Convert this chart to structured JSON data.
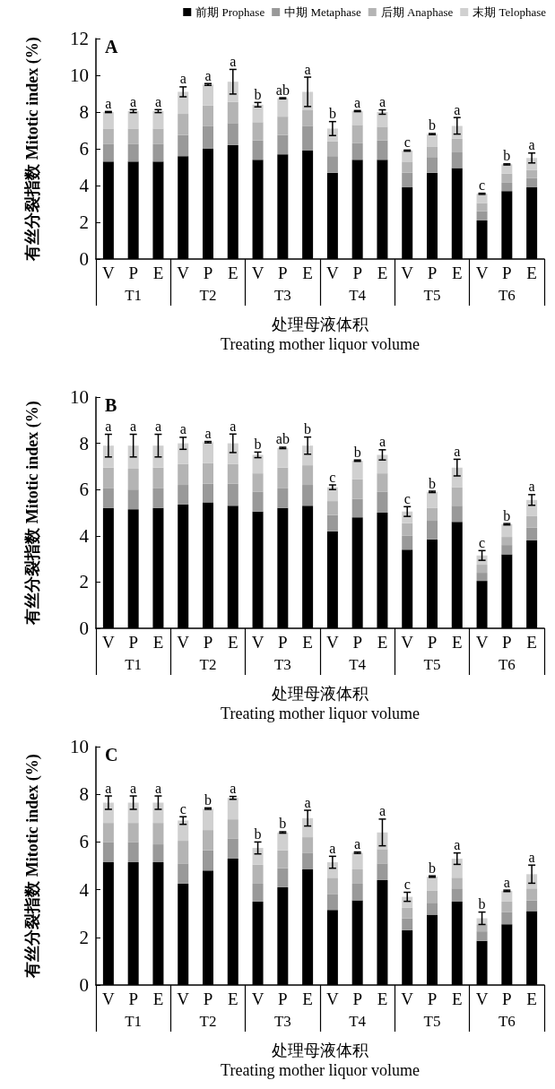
{
  "chart_data": [
    {
      "type": "bar",
      "title": "A",
      "stacked": true,
      "legend": "top",
      "ylabel": "有丝分裂指数 Mitotic index (%)",
      "xlabel": "处理母液体积\nTreating mother liquor volume",
      "ylim": [
        0,
        12
      ],
      "yticks": [
        0,
        2,
        4,
        6,
        8,
        10,
        12
      ],
      "categories": [
        "V",
        "P",
        "E",
        "V",
        "P",
        "E",
        "V",
        "P",
        "E",
        "V",
        "P",
        "E",
        "V",
        "P",
        "E",
        "V",
        "P",
        "E"
      ],
      "series": [
        {
          "name": "前期 Prophase",
          "color": "#000000",
          "values": [
            5.3,
            5.3,
            5.3,
            5.6,
            6.0,
            6.2,
            5.4,
            5.7,
            5.9,
            4.7,
            5.4,
            5.4,
            3.9,
            4.7,
            4.95,
            2.1,
            3.7,
            3.9
          ]
        },
        {
          "name": "中期 Metaphase",
          "color": "#999999",
          "values": [
            0.95,
            0.95,
            0.95,
            1.15,
            1.25,
            1.2,
            1.05,
            1.05,
            1.35,
            0.9,
            0.9,
            1.05,
            0.8,
            0.85,
            0.85,
            0.5,
            0.45,
            0.5
          ]
        },
        {
          "name": "后期 Anaphase",
          "color": "#b4b4b4",
          "values": [
            0.85,
            0.85,
            0.85,
            1.15,
            1.1,
            1.15,
            1.0,
            1.0,
            0.85,
            0.8,
            1.0,
            0.75,
            0.6,
            0.55,
            0.75,
            0.45,
            0.5,
            0.45
          ]
        },
        {
          "name": "末期 Telophase",
          "color": "#d0d0d0",
          "values": [
            0.9,
            0.95,
            0.95,
            1.2,
            1.15,
            1.1,
            0.95,
            1.0,
            1.0,
            0.7,
            0.75,
            0.8,
            0.6,
            0.7,
            0.7,
            0.5,
            0.5,
            0.65
          ],
          "errors": [
            0.03,
            0.08,
            0.08,
            0.27,
            0.05,
            0.67,
            0.12,
            0.03,
            0.8,
            0.38,
            0.03,
            0.12,
            0.03,
            0.03,
            0.45,
            0.03,
            0.03,
            0.27
          ]
        }
      ],
      "annotations": [
        "T1",
        "T2",
        "T3",
        "T4",
        "T5",
        "T6",
        "a",
        "a",
        "a",
        "a",
        "a",
        "a",
        "b",
        "ab",
        "a",
        "b",
        "a",
        "a",
        "c",
        "b",
        "a",
        "c",
        "b",
        "a"
      ]
    },
    {
      "type": "bar",
      "title": "B",
      "stacked": true,
      "ylabel": "有丝分裂指数 Mitotic index (%)",
      "xlabel": "处理母液体积\nTreating mother liquor volume",
      "ylim": [
        0,
        10
      ],
      "yticks": [
        0,
        2,
        4,
        6,
        8,
        10
      ],
      "categories": [
        "V",
        "P",
        "E",
        "V",
        "P",
        "E",
        "V",
        "P",
        "E",
        "V",
        "P",
        "E",
        "V",
        "P",
        "E",
        "V",
        "P",
        "E"
      ],
      "series": [
        {
          "color": "#000000",
          "values": [
            5.2,
            5.15,
            5.2,
            5.35,
            5.45,
            5.3,
            5.05,
            5.2,
            5.3,
            4.2,
            4.8,
            5.0,
            3.4,
            3.85,
            4.6,
            2.05,
            3.2,
            3.8
          ]
        },
        {
          "color": "#999999",
          "values": [
            0.85,
            0.85,
            0.85,
            0.85,
            0.8,
            0.95,
            0.85,
            0.85,
            0.9,
            0.7,
            0.8,
            0.9,
            0.6,
            0.8,
            0.7,
            0.35,
            0.4,
            0.55
          ]
        },
        {
          "color": "#b4b4b4",
          "values": [
            0.9,
            0.9,
            0.9,
            0.9,
            0.9,
            0.85,
            0.8,
            0.9,
            0.85,
            0.6,
            0.85,
            0.8,
            0.55,
            0.55,
            0.8,
            0.35,
            0.35,
            0.5
          ]
        },
        {
          "color": "#d0d0d0",
          "values": [
            0.95,
            1.0,
            0.95,
            0.9,
            0.9,
            0.9,
            0.8,
            0.85,
            0.85,
            0.6,
            0.8,
            0.8,
            0.5,
            0.7,
            0.85,
            0.4,
            0.55,
            0.7
          ],
          "errors": [
            0.49,
            0.49,
            0.49,
            0.26,
            0.03,
            0.4,
            0.12,
            0.03,
            0.37,
            0.1,
            0.03,
            0.22,
            0.21,
            0.03,
            0.36,
            0.21,
            0.03,
            0.23
          ]
        }
      ],
      "annotations": [
        "T1",
        "T2",
        "T3",
        "T4",
        "T5",
        "T6",
        "a",
        "a",
        "a",
        "a",
        "a",
        "a",
        "b",
        "ab",
        "b",
        "c",
        "b",
        "a",
        "c",
        "b",
        "a",
        "c",
        "b",
        "a"
      ]
    },
    {
      "type": "bar",
      "title": "C",
      "stacked": true,
      "ylabel": "有丝分裂指数 Mitotic index (%)",
      "xlabel": "处理母液体积\nTreating mother liquor volume",
      "ylim": [
        0,
        10
      ],
      "yticks": [
        0,
        2,
        4,
        6,
        8,
        10
      ],
      "categories": [
        "V",
        "P",
        "E",
        "V",
        "P",
        "E",
        "V",
        "P",
        "E",
        "V",
        "P",
        "E",
        "V",
        "P",
        "E",
        "V",
        "P",
        "E"
      ],
      "series": [
        {
          "color": "#000000",
          "values": [
            5.15,
            5.15,
            5.15,
            4.25,
            4.8,
            5.3,
            3.5,
            4.1,
            4.85,
            3.15,
            3.55,
            4.4,
            2.3,
            2.95,
            3.5,
            1.85,
            2.55,
            3.1
          ]
        },
        {
          "color": "#999999",
          "values": [
            0.85,
            0.85,
            0.75,
            0.85,
            0.85,
            0.85,
            0.75,
            0.8,
            0.7,
            0.65,
            0.7,
            0.7,
            0.5,
            0.5,
            0.55,
            0.4,
            0.5,
            0.45
          ]
        },
        {
          "color": "#b4b4b4",
          "values": [
            0.8,
            0.8,
            0.9,
            0.95,
            0.85,
            0.8,
            0.8,
            0.75,
            0.65,
            0.7,
            0.6,
            0.6,
            0.45,
            0.5,
            0.45,
            0.3,
            0.45,
            0.5
          ]
        },
        {
          "color": "#d0d0d0",
          "values": [
            0.85,
            0.85,
            0.85,
            0.85,
            0.9,
            0.9,
            0.7,
            0.75,
            0.8,
            0.65,
            0.7,
            0.7,
            0.45,
            0.6,
            0.8,
            0.25,
            0.45,
            0.6
          ],
          "errors": [
            0.28,
            0.28,
            0.28,
            0.16,
            0.03,
            0.06,
            0.25,
            0.03,
            0.33,
            0.25,
            0.03,
            0.56,
            0.19,
            0.03,
            0.24,
            0.26,
            0.03,
            0.38
          ]
        }
      ],
      "annotations": [
        "T1",
        "T2",
        "T3",
        "T4",
        "T5",
        "T6",
        "a",
        "a",
        "a",
        "c",
        "b",
        "a",
        "b",
        "b",
        "a",
        "a",
        "a",
        "a",
        "c",
        "b",
        "a",
        "b",
        "a",
        "a"
      ]
    }
  ]
}
